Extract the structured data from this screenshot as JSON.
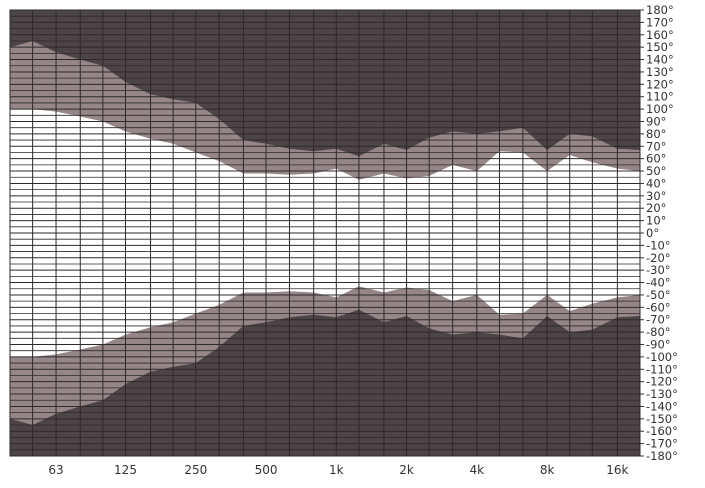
{
  "chart_data": {
    "type": "area",
    "title": "",
    "xlabel": "",
    "ylabel": "",
    "x_scale": "log",
    "xlim_hz": [
      40,
      20000
    ],
    "ylim_deg": [
      -180,
      180
    ],
    "x_tick_labels": [
      {
        "label": "63",
        "hz": 63
      },
      {
        "label": "125",
        "hz": 125
      },
      {
        "label": "250",
        "hz": 250
      },
      {
        "label": "500",
        "hz": 500
      },
      {
        "label": "1k",
        "hz": 1000
      },
      {
        "label": "2k",
        "hz": 2000
      },
      {
        "label": "4k",
        "hz": 4000
      },
      {
        "label": "8k",
        "hz": 8000
      },
      {
        "label": "16k",
        "hz": 16000
      }
    ],
    "y_tick_labels": [
      {
        "label": "180°",
        "deg": 180
      },
      {
        "label": "170°",
        "deg": 170
      },
      {
        "label": "160°",
        "deg": 160
      },
      {
        "label": "150°",
        "deg": 150
      },
      {
        "label": "140°",
        "deg": 140
      },
      {
        "label": "130°",
        "deg": 130
      },
      {
        "label": "120°",
        "deg": 120
      },
      {
        "label": "110°",
        "deg": 110
      },
      {
        "label": "100°",
        "deg": 100
      },
      {
        "label": "90°",
        "deg": 90
      },
      {
        "label": "80°",
        "deg": 80
      },
      {
        "label": "70°",
        "deg": 70
      },
      {
        "label": "60°",
        "deg": 60
      },
      {
        "label": "50°",
        "deg": 50
      },
      {
        "label": "40°",
        "deg": 40
      },
      {
        "label": "30°",
        "deg": 30
      },
      {
        "label": "20°",
        "deg": 20
      },
      {
        "label": "10°",
        "deg": 10
      },
      {
        "label": "0°",
        "deg": 0
      },
      {
        "label": "-10°",
        "deg": -10
      },
      {
        "label": "-20°",
        "deg": -20
      },
      {
        "label": "-30°",
        "deg": -30
      },
      {
        "label": "-40°",
        "deg": -40
      },
      {
        "label": "-50°",
        "deg": -50
      },
      {
        "label": "-60°",
        "deg": -60
      },
      {
        "label": "-70°",
        "deg": -70
      },
      {
        "label": "-80°",
        "deg": -80
      },
      {
        "label": "-90°",
        "deg": -90
      },
      {
        "label": "-100°",
        "deg": -100
      },
      {
        "label": "-110°",
        "deg": -110
      },
      {
        "label": "-120°",
        "deg": -120
      },
      {
        "label": "-130°",
        "deg": -130
      },
      {
        "label": "-140°",
        "deg": -140
      },
      {
        "label": "-150°",
        "deg": -150
      },
      {
        "label": "-160°",
        "deg": -160
      },
      {
        "label": "-170°",
        "deg": -170
      },
      {
        "label": "-180°",
        "deg": -180
      }
    ],
    "series": [
      {
        "hz": [
          40,
          50,
          63,
          80,
          100,
          125,
          160,
          200,
          250,
          315,
          400,
          500,
          630,
          800,
          1000,
          1250,
          1600,
          2000,
          2500,
          3150,
          4000,
          5000,
          6300,
          8000,
          10000,
          12500,
          16000,
          20000
        ],
        "outer_deg": [
          150,
          155,
          146,
          140,
          135,
          122,
          112,
          108,
          105,
          92,
          75,
          72,
          68,
          66,
          68,
          62,
          72,
          67,
          77,
          82,
          80,
          82,
          85,
          67,
          80,
          78,
          68,
          67
        ],
        "inner_deg": [
          100,
          100,
          98,
          94,
          90,
          82,
          76,
          72,
          65,
          58,
          48,
          48,
          47,
          48,
          52,
          43,
          48,
          44,
          46,
          55,
          50,
          66,
          65,
          50,
          63,
          57,
          52,
          50
        ]
      }
    ],
    "grid": true,
    "colors": {
      "outer_region": "#4c4446",
      "middle_region": "#968688",
      "inner_region": "#ffffff",
      "grid_line": "#2e2a2b"
    }
  }
}
